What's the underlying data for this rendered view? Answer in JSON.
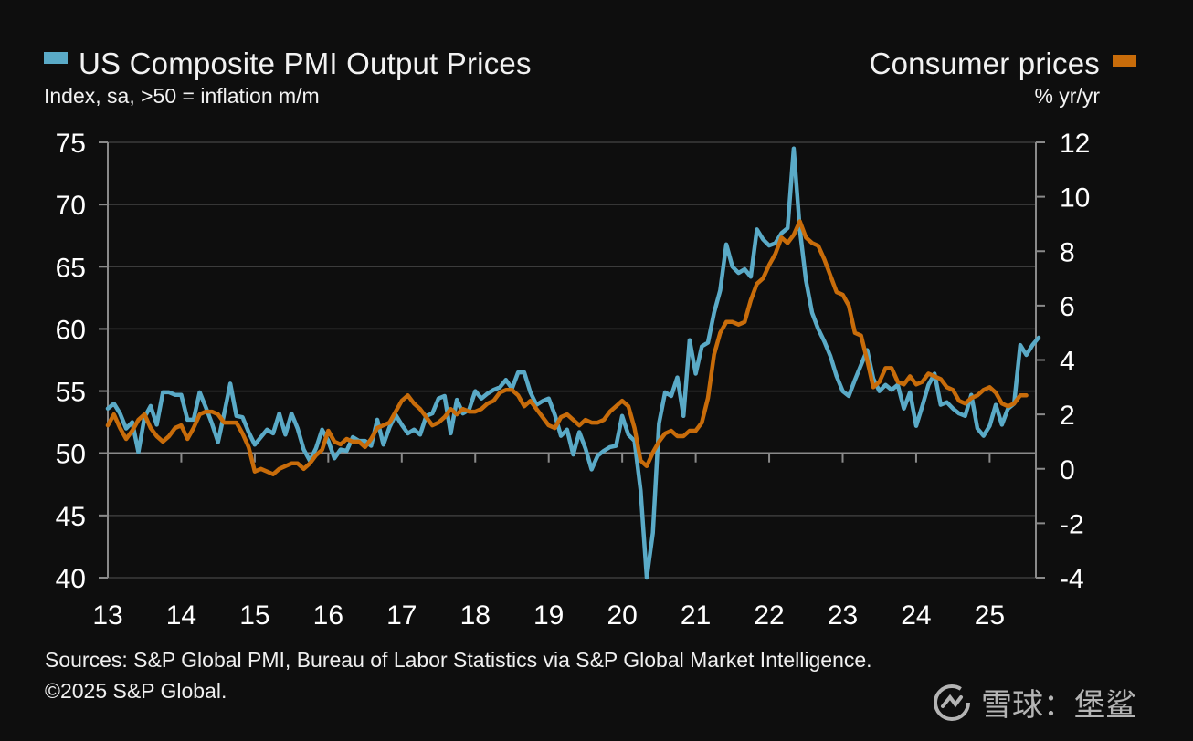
{
  "legend": {
    "left": {
      "title": "US Composite PMI Output Prices",
      "subtitle": "Index, sa, >50 = inflation m/m",
      "color": "#5aaac7"
    },
    "right": {
      "title": "Consumer prices",
      "subtitle": "% yr/yr",
      "color": "#c86c0a"
    }
  },
  "footer": {
    "line1": "Sources: S&P Global PMI, Bureau of Labor Statistics via S&P Global Market Intelligence.",
    "line2": "©2025 S&P Global."
  },
  "watermark": {
    "text": "雪球：堡鲨",
    "icon": "xueqiu-logo-icon"
  },
  "chart_data": {
    "type": "line",
    "title": "US Composite PMI Output Prices vs Consumer prices",
    "xlabel": "",
    "x_start": "2013-01",
    "frequency": "monthly",
    "x_ticks": [
      "13",
      "14",
      "15",
      "16",
      "17",
      "18",
      "19",
      "20",
      "21",
      "22",
      "23",
      "24",
      "25"
    ],
    "y_left": {
      "label": "Index, sa, >50 = inflation m/m",
      "range": [
        40,
        75
      ],
      "ticks": [
        "75",
        "70",
        "65",
        "60",
        "55",
        "50",
        "45",
        "40"
      ]
    },
    "y_right": {
      "label": "% yr/yr",
      "range": [
        -4,
        12
      ],
      "ticks": [
        "12",
        "10",
        "8",
        "6",
        "4",
        "2",
        "0",
        "-2",
        "-4"
      ]
    },
    "grid": true,
    "baseline_left": 50,
    "series": [
      {
        "name": "US Composite PMI Output Prices",
        "axis": "left",
        "color": "#5aaac7",
        "values": [
          53.6,
          54.0,
          53.2,
          52.0,
          52.5,
          50.1,
          52.9,
          53.8,
          52.3,
          54.9,
          54.9,
          54.7,
          54.7,
          52.7,
          52.7,
          54.9,
          53.7,
          52.4,
          50.9,
          53.2,
          55.6,
          53.0,
          52.9,
          51.7,
          50.7,
          51.3,
          51.9,
          51.6,
          53.2,
          51.5,
          53.2,
          52.0,
          50.3,
          49.4,
          50.4,
          51.9,
          51.0,
          49.6,
          50.3,
          50.2,
          51.3,
          51.0,
          51.0,
          50.6,
          52.7,
          50.7,
          52.1,
          53.1,
          52.3,
          51.6,
          51.9,
          51.5,
          53.0,
          53.2,
          54.4,
          54.6,
          51.6,
          54.3,
          53.2,
          53.5,
          55.0,
          54.4,
          54.8,
          55.1,
          55.3,
          55.9,
          55.2,
          56.5,
          56.5,
          54.9,
          53.9,
          54.2,
          54.4,
          53.1,
          51.4,
          51.9,
          49.9,
          51.7,
          50.4,
          48.7,
          49.8,
          50.2,
          50.5,
          50.6,
          53.0,
          51.5,
          51.0,
          47.0,
          40.0,
          43.6,
          52.4,
          54.9,
          54.6,
          56.1,
          53.0,
          59.1,
          56.4,
          58.6,
          58.9,
          61.3,
          63.1,
          66.8,
          65.0,
          64.5,
          64.8,
          64.2,
          68.0,
          67.2,
          66.7,
          66.9,
          67.7,
          68.1,
          74.5,
          68.0,
          63.9,
          61.3,
          60.0,
          59.0,
          57.8,
          56.2,
          55.0,
          54.6,
          55.9,
          57.1,
          58.3,
          56.0,
          55.0,
          55.5,
          55.1,
          55.5,
          53.6,
          54.9,
          52.2,
          53.8,
          55.5,
          56.4,
          53.9,
          54.1,
          53.6,
          53.2,
          53.0,
          54.7,
          52.0,
          51.4,
          52.2,
          53.9,
          52.3,
          53.6,
          54.0,
          58.7,
          57.9,
          58.7,
          59.3
        ]
      },
      {
        "name": "Consumer prices",
        "axis": "right",
        "color": "#c86c0a",
        "values": [
          1.6,
          2.0,
          1.5,
          1.1,
          1.4,
          1.8,
          2.0,
          1.5,
          1.2,
          1.0,
          1.2,
          1.5,
          1.6,
          1.1,
          1.5,
          2.0,
          2.1,
          2.1,
          2.0,
          1.7,
          1.7,
          1.7,
          1.3,
          0.8,
          -0.1,
          0.0,
          -0.1,
          -0.2,
          0.0,
          0.1,
          0.2,
          0.2,
          0.0,
          0.2,
          0.5,
          0.7,
          1.4,
          1.0,
          0.9,
          1.1,
          1.0,
          1.0,
          0.8,
          1.1,
          1.5,
          1.6,
          1.7,
          2.1,
          2.5,
          2.7,
          2.4,
          2.2,
          1.9,
          1.6,
          1.7,
          1.9,
          2.2,
          2.0,
          2.2,
          2.1,
          2.1,
          2.2,
          2.4,
          2.5,
          2.8,
          2.9,
          2.9,
          2.7,
          2.3,
          2.5,
          2.2,
          1.9,
          1.6,
          1.5,
          1.9,
          2.0,
          1.8,
          1.6,
          1.8,
          1.7,
          1.7,
          1.8,
          2.1,
          2.3,
          2.5,
          2.3,
          1.5,
          0.3,
          0.1,
          0.6,
          1.0,
          1.3,
          1.4,
          1.2,
          1.2,
          1.4,
          1.4,
          1.7,
          2.6,
          4.2,
          5.0,
          5.4,
          5.4,
          5.3,
          5.4,
          6.2,
          6.8,
          7.0,
          7.5,
          7.9,
          8.5,
          8.3,
          8.6,
          9.1,
          8.5,
          8.3,
          8.2,
          7.7,
          7.1,
          6.5,
          6.4,
          6.0,
          5.0,
          4.9,
          4.0,
          3.0,
          3.2,
          3.7,
          3.7,
          3.2,
          3.1,
          3.4,
          3.1,
          3.2,
          3.5,
          3.4,
          3.3,
          3.0,
          2.9,
          2.5,
          2.4,
          2.6,
          2.7,
          2.9,
          3.0,
          2.8,
          2.4,
          2.3,
          2.4,
          2.7,
          2.7
        ]
      }
    ]
  }
}
